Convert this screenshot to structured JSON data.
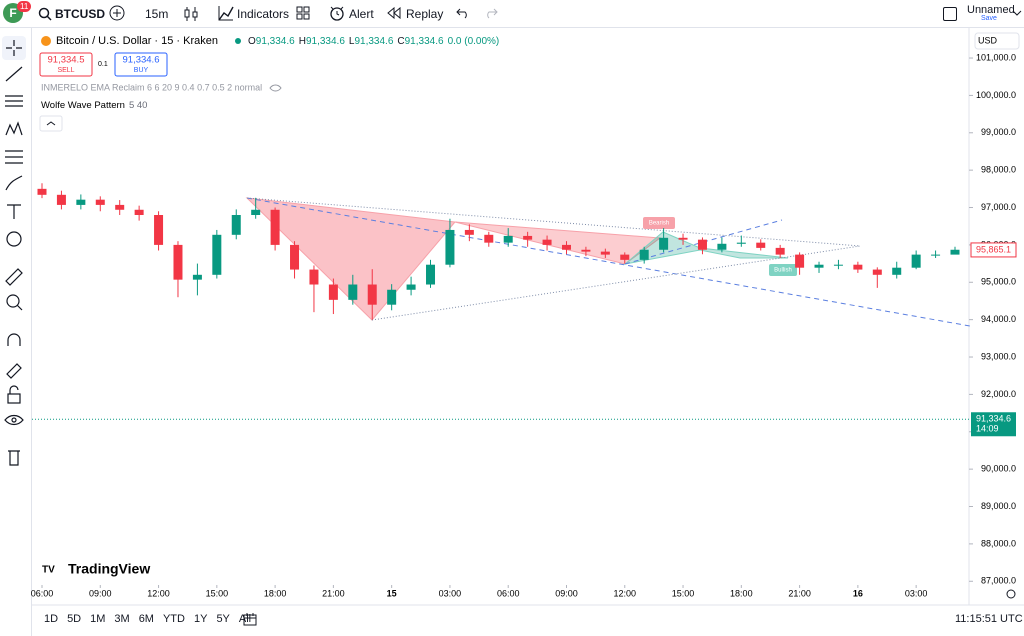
{
  "ui": {
    "avatar": "F",
    "badge": "11",
    "symbol": "BTCUSD",
    "interval": "15m",
    "indicators": "Indicators",
    "alert": "Alert",
    "replay": "Replay",
    "layout_name": "Unnamed",
    "save": "Save",
    "legend_title": "Bitcoin / U.S. Dollar · 15 · Kraken",
    "ohlc": [
      {
        "key": "O",
        "value": "91,334.6"
      },
      {
        "key": "H",
        "value": "91,334.6"
      },
      {
        "key": "L",
        "value": "91,334.6"
      },
      {
        "key": "C",
        "value": "91,334.6"
      }
    ],
    "change": "0.0 (0.00%)",
    "sell_price": "91,334.5",
    "sell": "SELL",
    "spread": "0.1",
    "buy_price": "91,334.6",
    "buy": "BUY",
    "indicator_1": "INMERELO EMA Reclaim 6 6 20 9 0.4 0.7 0.5 2 normal",
    "indicator_2_name": "Wolfe Wave Pattern",
    "indicator_2_args": "5 40",
    "currency": "USD",
    "logo": "TradingView",
    "bearish": "Bearish",
    "bullish": "Bullish",
    "ranges": [
      "1D",
      "5D",
      "1M",
      "3M",
      "6M",
      "YTD",
      "1Y",
      "5Y",
      "All"
    ],
    "clock": "11:15:51 UTC"
  },
  "chart_data": {
    "type": "candlestick",
    "title": "Bitcoin / U.S. Dollar · 15 · Kraken",
    "open": [
      97500,
      97340,
      97070,
      97210,
      97070,
      96940,
      96800,
      96000,
      95070,
      95200,
      96270,
      96800,
      96940,
      96000,
      95340,
      94940,
      94530,
      94940,
      94400,
      94800,
      94940,
      95470,
      96400,
      96270,
      96060,
      96240,
      96140,
      96000,
      95870,
      95820,
      95740,
      95600,
      95870,
      96190,
      96140,
      95870,
      96030,
      96060,
      95920,
      95740,
      95390,
      95470,
      95470,
      95340,
      95200,
      95390,
      95740,
      95740
    ],
    "high": [
      97650,
      97450,
      97350,
      97300,
      97200,
      97050,
      96900,
      96100,
      95500,
      96400,
      96950,
      97260,
      97000,
      96100,
      95450,
      95100,
      95200,
      95350,
      94950,
      95150,
      95600,
      96700,
      96550,
      96350,
      96450,
      96350,
      96250,
      96100,
      95950,
      95900,
      95800,
      95950,
      96450,
      96300,
      96200,
      96200,
      96250,
      96150,
      96000,
      95800,
      95550,
      95600,
      95550,
      95400,
      95550,
      95850,
      95850,
      95950
    ],
    "low": [
      97250,
      96950,
      96950,
      96900,
      96800,
      96650,
      95850,
      94600,
      94650,
      95100,
      96150,
      96700,
      95850,
      95100,
      94200,
      94150,
      94400,
      94000,
      94250,
      94650,
      94850,
      95400,
      96100,
      95950,
      95950,
      95950,
      95850,
      95750,
      95700,
      95650,
      95500,
      95500,
      95800,
      96000,
      95750,
      95800,
      95950,
      95850,
      95650,
      95200,
      95250,
      95350,
      95250,
      94850,
      95100,
      95350,
      95650,
      95750
    ],
    "close": [
      97340,
      97070,
      97210,
      97070,
      96940,
      96800,
      96000,
      95070,
      95200,
      96270,
      96800,
      96940,
      96000,
      95340,
      94940,
      94530,
      94940,
      94400,
      94800,
      94940,
      95470,
      96400,
      96270,
      96060,
      96240,
      96140,
      96000,
      95870,
      95820,
      95740,
      95600,
      95870,
      96190,
      96140,
      95870,
      96030,
      96060,
      95920,
      95740,
      95390,
      95470,
      95470,
      95340,
      95200,
      95390,
      95740,
      95740,
      95870
    ],
    "up_color": "#089981",
    "down_color": "#f23645",
    "xlim": [
      -0.4,
      47.8
    ],
    "xticks": [
      {
        "value": 0,
        "label": "06:00"
      },
      {
        "value": 3,
        "label": "09:00"
      },
      {
        "value": 6,
        "label": "12:00"
      },
      {
        "value": 9,
        "label": "15:00"
      },
      {
        "value": 12,
        "label": "18:00"
      },
      {
        "value": 15,
        "label": "21:00"
      },
      {
        "value": 18,
        "label": "15"
      },
      {
        "value": 21,
        "label": "03:00"
      },
      {
        "value": 24,
        "label": "06:00"
      },
      {
        "value": 27,
        "label": "09:00"
      },
      {
        "value": 30,
        "label": "12:00"
      },
      {
        "value": 33,
        "label": "15:00"
      },
      {
        "value": 36,
        "label": "18:00"
      },
      {
        "value": 39,
        "label": "21:00"
      },
      {
        "value": 42,
        "label": "16"
      },
      {
        "value": 45,
        "label": "03:00"
      }
    ],
    "ylim": [
      86900,
      101750
    ],
    "yticks": [
      {
        "value": 101000,
        "label": "101,000.0"
      },
      {
        "value": 100000,
        "label": "100,000.0"
      },
      {
        "value": 99000,
        "label": "99,000.0"
      },
      {
        "value": 98000,
        "label": "98,000.0"
      },
      {
        "value": 97000,
        "label": "97,000.0"
      },
      {
        "value": 96000,
        "label": "96,000.0"
      },
      {
        "value": 95000,
        "label": "95,000.0"
      },
      {
        "value": 94000,
        "label": "94,000.0"
      },
      {
        "value": 93000,
        "label": "93,000.0"
      },
      {
        "value": 92000,
        "label": "92,000.0"
      },
      {
        "value": 91000,
        "label": "91,000.0"
      },
      {
        "value": 90000,
        "label": "90,000.0"
      },
      {
        "value": 89000,
        "label": "89,000.0"
      },
      {
        "value": 88000,
        "label": "88,000.0"
      },
      {
        "value": 87000,
        "label": "87,000.0"
      }
    ],
    "last_price": {
      "value": 95865.1,
      "label": "95,865.1"
    },
    "current_price": {
      "value": 91334.6,
      "label": "91,334.6",
      "time": "14:09"
    }
  }
}
